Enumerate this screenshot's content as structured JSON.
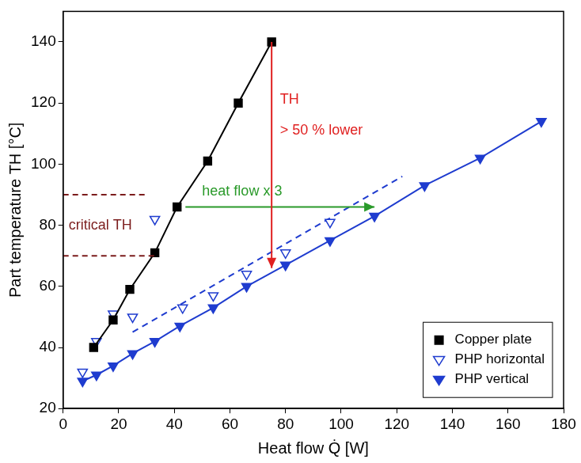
{
  "chart_data": {
    "type": "scatter",
    "x_label": "Heat flow Q̇ [W]",
    "y_label": "Part temperature TH [°C]",
    "xlim": [
      0,
      180
    ],
    "xticks": [
      0,
      20,
      40,
      60,
      80,
      100,
      120,
      140,
      160,
      180
    ],
    "ylim": [
      20,
      150
    ],
    "yticks": [
      20,
      40,
      60,
      80,
      100,
      120,
      140
    ],
    "grid": false,
    "legend": "lower right",
    "series": [
      {
        "name": "Copper plate",
        "color": "#000000",
        "marker": "square",
        "line_style": "solid",
        "x": [
          11,
          18,
          24,
          33,
          41,
          52,
          63,
          75
        ],
        "values": [
          40,
          49,
          59,
          71,
          86,
          101,
          120,
          140
        ]
      },
      {
        "name": "PHP horizontal",
        "color": "#1f3ccf",
        "marker": "triangle_down_open",
        "line_style": "none",
        "x": [
          7,
          12,
          18,
          25,
          33,
          43,
          54,
          66,
          80,
          96
        ],
        "values": [
          32,
          42,
          51,
          50,
          82,
          53,
          57,
          64,
          71,
          81
        ]
      },
      {
        "name": "PHP vertical",
        "color": "#1f3ccf",
        "marker": "triangle_down",
        "line_style": "solid",
        "x": [
          7,
          12,
          18,
          25,
          33,
          42,
          54,
          66,
          80,
          96,
          112,
          130,
          150,
          172
        ],
        "values": [
          29,
          31,
          34,
          38,
          42,
          47,
          53,
          60,
          67,
          75,
          83,
          93,
          102,
          114
        ]
      },
      {
        "color": "#1f3ccf",
        "marker": "none",
        "line_style": "dashed",
        "x": [
          25,
          122
        ],
        "values": [
          45,
          96
        ]
      }
    ],
    "annotations": [
      {
        "type": "line",
        "x": [
          0,
          30
        ],
        "y": [
          90,
          90
        ],
        "color": "#7b1c1c",
        "line_style": "dashed"
      },
      {
        "type": "line",
        "x": [
          0,
          33
        ],
        "y": [
          70,
          70
        ],
        "color": "#7b1c1c",
        "line_style": "dashed"
      },
      {
        "type": "text",
        "text": "critical TH",
        "x": 2,
        "y": 80,
        "color": "#7b1c1c"
      },
      {
        "type": "arrow",
        "x": [
          44,
          112
        ],
        "y": [
          86,
          86
        ],
        "color": "#2a9a2a"
      },
      {
        "type": "text",
        "text": "heat flow x 3",
        "x": 50,
        "y": 91,
        "color": "#2a9a2a"
      },
      {
        "type": "arrow",
        "x": [
          75,
          75
        ],
        "y": [
          140,
          66
        ],
        "color": "#e02020"
      },
      {
        "type": "text",
        "text": "TH",
        "x": 78,
        "y": 121,
        "color": "#e02020"
      },
      {
        "type": "text",
        "text": "> 50 % lower",
        "x": 78,
        "y": 111,
        "color": "#e02020"
      }
    ]
  }
}
